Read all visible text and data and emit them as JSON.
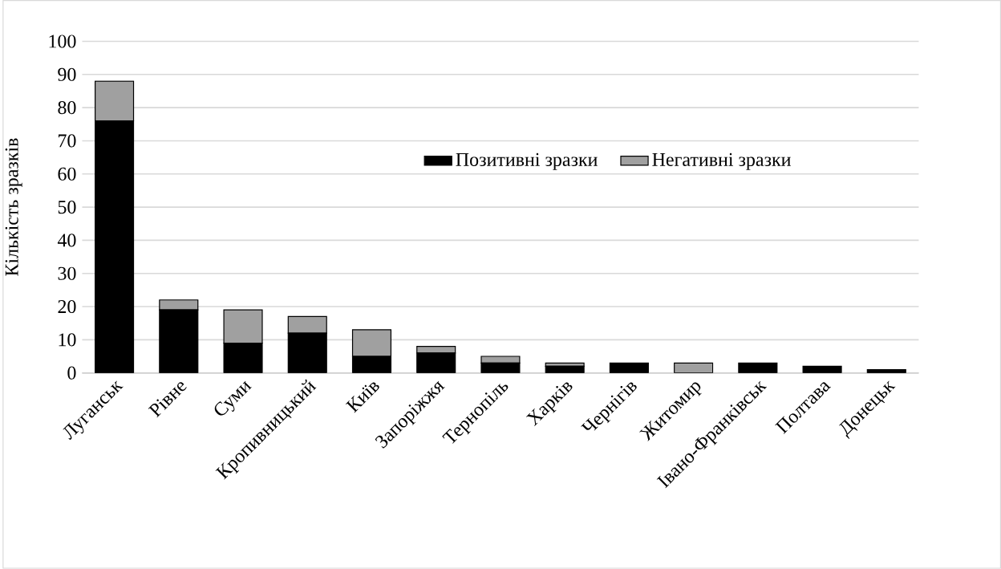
{
  "chart_data": {
    "type": "bar",
    "stacked": true,
    "ylabel": "Кількість зразків",
    "categories": [
      "Луганськ",
      "Рівне",
      "Суми",
      "Кропивницький",
      "Київ",
      "Запоріжжя",
      "Тернопіль",
      "Харків",
      "Чернігів",
      "Житомир",
      "Івано-Франківськ",
      "Полтава",
      "Донецьк"
    ],
    "series": [
      {
        "name": "Позитивні зразки",
        "color": "#000000",
        "values": [
          76,
          19,
          9,
          12,
          5,
          6,
          3,
          2,
          3,
          0,
          3,
          2,
          1
        ]
      },
      {
        "name": "Негативні зразки",
        "color": "#a0a0a0",
        "values": [
          12,
          3,
          10,
          5,
          8,
          2,
          2,
          1,
          0,
          3,
          0,
          0,
          0
        ]
      }
    ],
    "ylim": [
      0,
      100
    ],
    "yticks": [
      0,
      10,
      20,
      30,
      40,
      50,
      60,
      70,
      80,
      90,
      100
    ],
    "grid": "y",
    "legend": "center"
  }
}
